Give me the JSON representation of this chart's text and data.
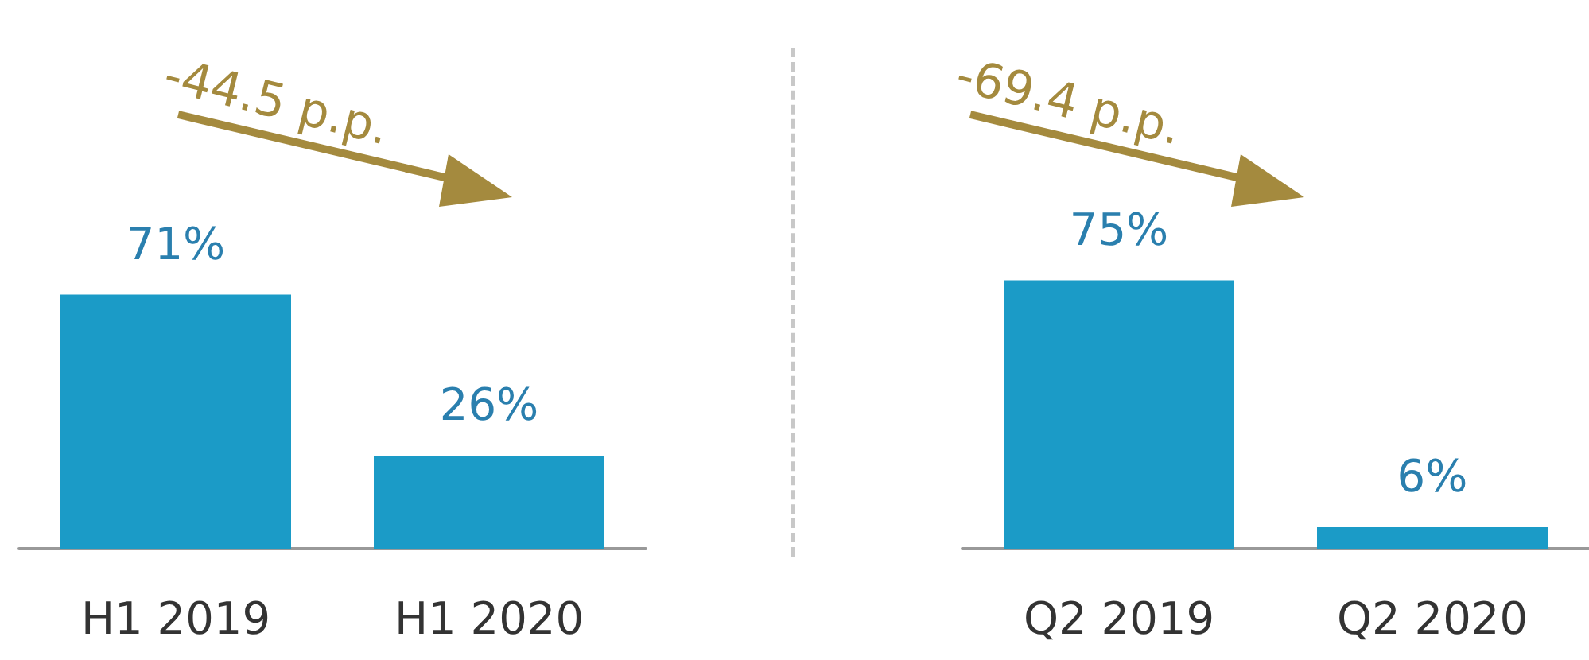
{
  "chart_data": [
    {
      "type": "bar",
      "categories": [
        "H1 2019",
        "H1 2020"
      ],
      "values": [
        71,
        26
      ],
      "value_labels": [
        "71%",
        "26%"
      ],
      "color": "#1b9bc7",
      "annotations": [
        "-44.5 p.p."
      ]
    },
    {
      "type": "bar",
      "categories": [
        "Q2 2019",
        "Q2 2020"
      ],
      "values": [
        75,
        6
      ],
      "value_labels": [
        "75%",
        "6%"
      ],
      "color": "#1b9bc7",
      "annotations": [
        "-69.4 p.p."
      ]
    }
  ]
}
